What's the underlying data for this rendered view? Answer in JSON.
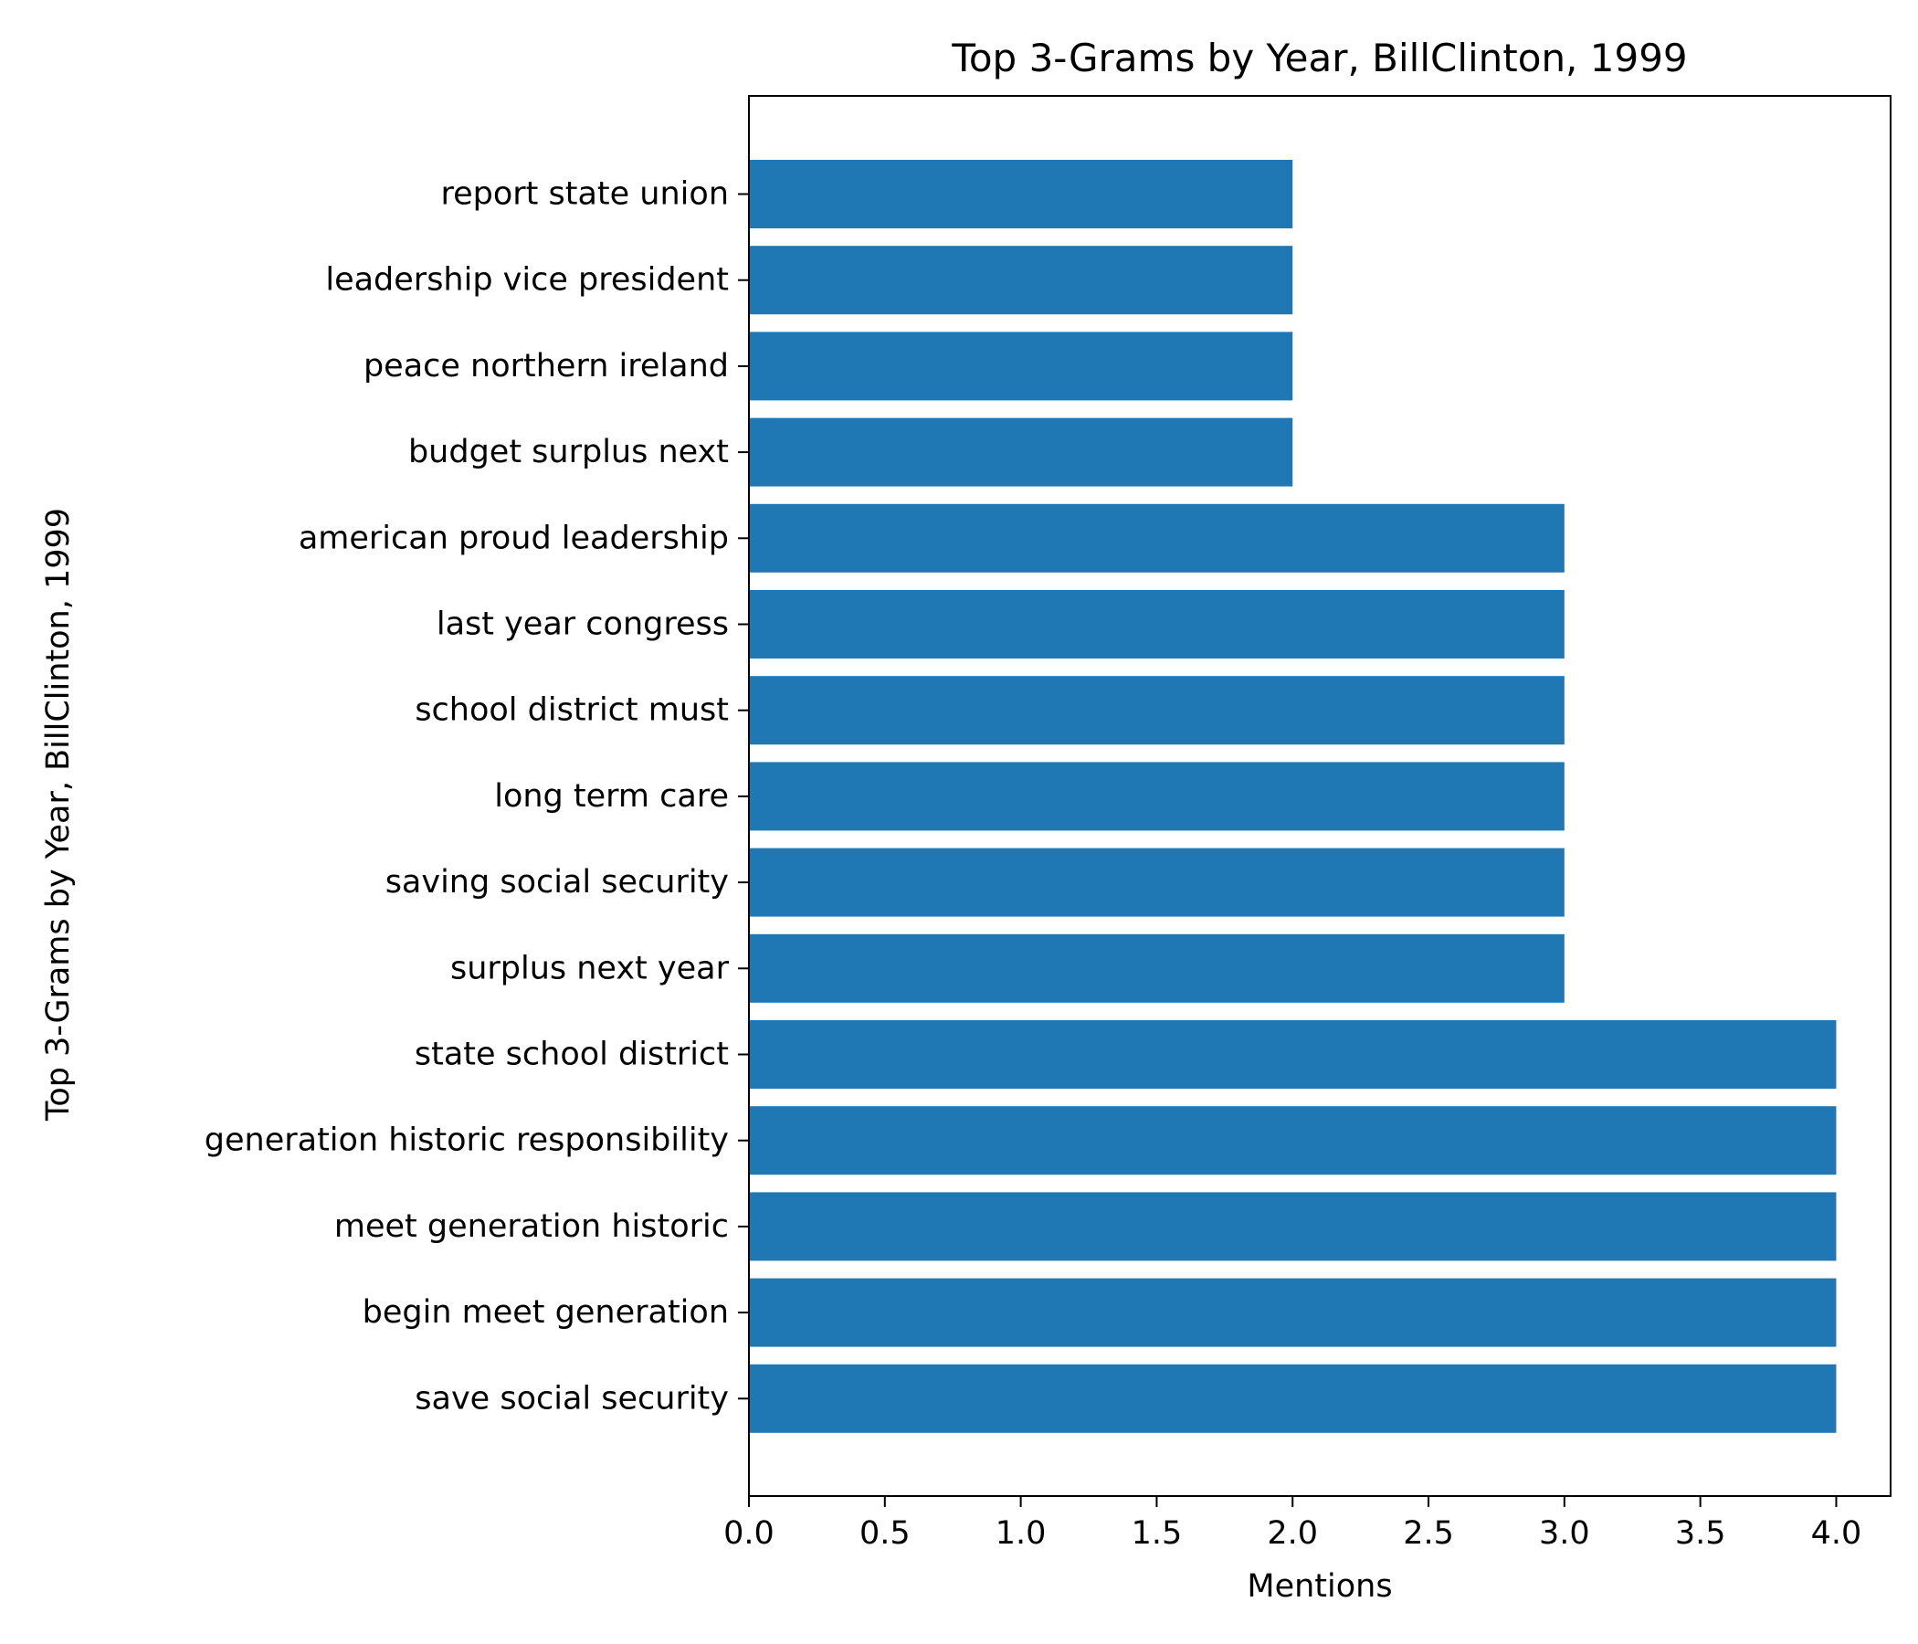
{
  "colors": {
    "bar": "#1f77b4",
    "axis": "#000000",
    "background": "#ffffff"
  },
  "chart_data": {
    "type": "bar",
    "orientation": "horizontal",
    "title": "Top 3-Grams by Year, BillClinton, 1999",
    "xlabel": "Mentions",
    "ylabel": "Top 3-Grams by Year, BillClinton, 1999",
    "xlim": [
      0,
      4.2
    ],
    "xticks": [
      "0.0",
      "0.5",
      "1.0",
      "1.5",
      "2.0",
      "2.5",
      "3.0",
      "3.5",
      "4.0"
    ],
    "grid": false,
    "categories": [
      "save social security",
      "begin meet generation",
      "meet generation historic",
      "generation historic responsibility",
      "state school district",
      "surplus next year",
      "saving social security",
      "long term care",
      "school district must",
      "last year congress",
      "american proud leadership",
      "budget surplus next",
      "peace northern ireland",
      "leadership vice president",
      "report state union"
    ],
    "values": [
      4,
      4,
      4,
      4,
      4,
      3,
      3,
      3,
      3,
      3,
      3,
      2,
      2,
      2,
      2
    ]
  }
}
